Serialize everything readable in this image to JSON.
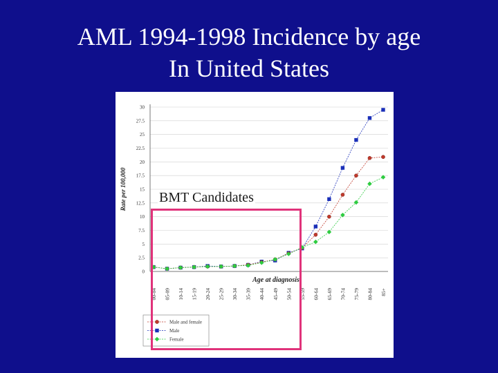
{
  "slide": {
    "title_line1": "AML 1994-1998 Incidence by age",
    "title_line2": "In United States"
  },
  "annotation": {
    "label": "BMT Candidates",
    "color": "#e0327a"
  },
  "chart_data": {
    "type": "line",
    "ylabel": "Rate per 100,000",
    "xlabel": "Age at diagnosis",
    "ylim": [
      0,
      30
    ],
    "yticks": [
      "0",
      "2.5",
      "5",
      "7.5",
      "10",
      "12.5",
      "15",
      "17.5",
      "20",
      "22.5",
      "25",
      "27.5",
      "30"
    ],
    "categories": [
      "00-04",
      "05-09",
      "10-14",
      "15-19",
      "20-24",
      "25-29",
      "30-34",
      "35-39",
      "40-44",
      "45-49",
      "50-54",
      "55-59",
      "60-64",
      "65-69",
      "70-74",
      "75-79",
      "80-84",
      "85+"
    ],
    "grid": true,
    "legend_position": "bottom-left",
    "series": [
      {
        "name": "Male and female",
        "marker": "circle",
        "color": "#c0392b",
        "values": [
          0.8,
          0.5,
          0.7,
          0.8,
          0.9,
          0.9,
          1.0,
          1.2,
          1.7,
          2.2,
          3.3,
          4.3,
          6.7,
          10.0,
          14.0,
          17.5,
          20.7,
          20.9
        ]
      },
      {
        "name": "Male",
        "marker": "square",
        "color": "#1a2fb8",
        "values": [
          0.8,
          0.5,
          0.7,
          0.8,
          1.0,
          0.9,
          1.0,
          1.2,
          1.8,
          2.0,
          3.4,
          4.2,
          8.2,
          13.2,
          18.9,
          24.0,
          28.0,
          29.5
        ]
      },
      {
        "name": "Female",
        "marker": "diamond",
        "color": "#2ecc40",
        "values": [
          0.8,
          0.5,
          0.7,
          0.8,
          0.9,
          0.9,
          1.0,
          1.1,
          1.6,
          2.2,
          3.2,
          4.4,
          5.4,
          7.2,
          10.3,
          12.6,
          16.0,
          17.2
        ]
      }
    ]
  }
}
